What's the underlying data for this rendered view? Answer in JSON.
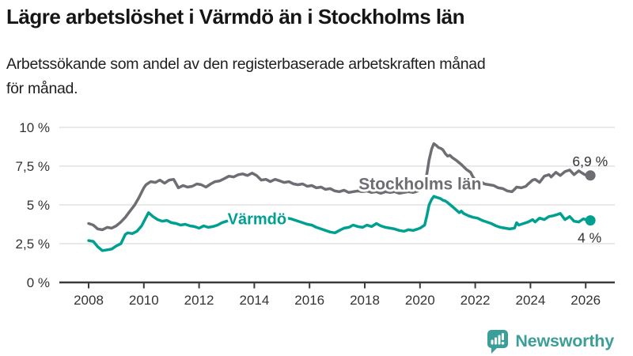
{
  "footer": {
    "brand": "Newsworthy",
    "brand_color": "#3b9e99",
    "logo_icon": "newsworthy-speech-bubble-bar-chart-icon"
  },
  "chart_data": {
    "type": "line",
    "title": "Lägre arbetslöshet i Värmdö än i Stockholms län",
    "subtitle": "Arbetssökande som andel av den registerbaserade arbetskraften månad för månad.",
    "subtitle_lines": [
      "Arbetssökande som andel av den registerbaserade arbetskraften månad",
      "för månad."
    ],
    "grid": true,
    "legend_position": "inline-labels",
    "colors": {
      "axis": "#3a3a3a",
      "grid": "#e2e2e2",
      "axis_text": "#333333"
    },
    "x_axis": {
      "range": [
        2007.4,
        2027.1
      ],
      "ticks": [
        2008,
        2010,
        2012,
        2014,
        2016,
        2018,
        2020,
        2022,
        2024,
        2026
      ]
    },
    "y_axis": {
      "range": [
        0,
        10
      ],
      "unit": "%",
      "ticks": [
        0,
        2.5,
        5,
        7.5,
        10
      ],
      "tick_labels": [
        "0 %",
        "2,5 %",
        "5 %",
        "7,5 %",
        "10 %"
      ]
    },
    "series": [
      {
        "name": "Stockholms län",
        "color": "#6d6d73",
        "end_label": "6,9 %",
        "end_value": 6.9,
        "label_anchor": {
          "x": 2020.0,
          "y": 6.35
        },
        "points": [
          [
            2008.0,
            3.8
          ],
          [
            2008.17,
            3.7
          ],
          [
            2008.33,
            3.45
          ],
          [
            2008.5,
            3.4
          ],
          [
            2008.67,
            3.55
          ],
          [
            2008.83,
            3.5
          ],
          [
            2009.0,
            3.65
          ],
          [
            2009.17,
            3.9
          ],
          [
            2009.33,
            4.2
          ],
          [
            2009.5,
            4.6
          ],
          [
            2009.67,
            5.0
          ],
          [
            2009.83,
            5.5
          ],
          [
            2010.0,
            6.1
          ],
          [
            2010.08,
            6.3
          ],
          [
            2010.25,
            6.5
          ],
          [
            2010.42,
            6.45
          ],
          [
            2010.58,
            6.6
          ],
          [
            2010.75,
            6.4
          ],
          [
            2010.92,
            6.6
          ],
          [
            2011.08,
            6.65
          ],
          [
            2011.25,
            6.1
          ],
          [
            2011.42,
            6.25
          ],
          [
            2011.58,
            6.15
          ],
          [
            2011.75,
            6.2
          ],
          [
            2011.92,
            6.35
          ],
          [
            2012.08,
            6.3
          ],
          [
            2012.25,
            6.15
          ],
          [
            2012.42,
            6.35
          ],
          [
            2012.58,
            6.5
          ],
          [
            2012.75,
            6.55
          ],
          [
            2012.92,
            6.7
          ],
          [
            2013.08,
            6.85
          ],
          [
            2013.25,
            6.8
          ],
          [
            2013.42,
            6.95
          ],
          [
            2013.58,
            7.0
          ],
          [
            2013.75,
            6.9
          ],
          [
            2013.92,
            7.05
          ],
          [
            2014.08,
            6.9
          ],
          [
            2014.25,
            6.6
          ],
          [
            2014.42,
            6.65
          ],
          [
            2014.58,
            6.5
          ],
          [
            2014.75,
            6.65
          ],
          [
            2014.92,
            6.55
          ],
          [
            2015.08,
            6.45
          ],
          [
            2015.25,
            6.5
          ],
          [
            2015.42,
            6.35
          ],
          [
            2015.58,
            6.3
          ],
          [
            2015.75,
            6.35
          ],
          [
            2015.92,
            6.2
          ],
          [
            2016.08,
            6.25
          ],
          [
            2016.25,
            6.1
          ],
          [
            2016.42,
            6.15
          ],
          [
            2016.58,
            6.0
          ],
          [
            2016.75,
            6.05
          ],
          [
            2016.92,
            5.9
          ],
          [
            2017.08,
            5.85
          ],
          [
            2017.25,
            5.95
          ],
          [
            2017.42,
            5.8
          ],
          [
            2017.58,
            5.85
          ],
          [
            2017.75,
            5.9
          ],
          [
            2017.92,
            5.85
          ],
          [
            2018.08,
            5.9
          ],
          [
            2018.25,
            5.8
          ],
          [
            2018.42,
            5.85
          ],
          [
            2018.58,
            5.75
          ],
          [
            2018.75,
            5.85
          ],
          [
            2018.92,
            5.8
          ],
          [
            2019.08,
            5.85
          ],
          [
            2019.25,
            5.75
          ],
          [
            2019.42,
            5.8
          ],
          [
            2019.58,
            5.85
          ],
          [
            2019.75,
            5.8
          ],
          [
            2019.92,
            5.9
          ],
          [
            2020.08,
            6.1
          ],
          [
            2020.25,
            7.0
          ],
          [
            2020.33,
            7.9
          ],
          [
            2020.42,
            8.6
          ],
          [
            2020.5,
            8.95
          ],
          [
            2020.58,
            8.85
          ],
          [
            2020.67,
            8.7
          ],
          [
            2020.75,
            8.65
          ],
          [
            2020.83,
            8.55
          ],
          [
            2020.92,
            8.3
          ],
          [
            2021.0,
            8.15
          ],
          [
            2021.08,
            8.2
          ],
          [
            2021.17,
            8.05
          ],
          [
            2021.33,
            7.85
          ],
          [
            2021.5,
            7.6
          ],
          [
            2021.67,
            7.3
          ],
          [
            2021.83,
            7.1
          ],
          [
            2021.92,
            6.8
          ],
          [
            2022.0,
            6.6
          ],
          [
            2022.08,
            6.5
          ],
          [
            2022.25,
            6.45
          ],
          [
            2022.33,
            6.35
          ],
          [
            2022.5,
            6.3
          ],
          [
            2022.67,
            6.25
          ],
          [
            2022.83,
            6.1
          ],
          [
            2023.0,
            6.05
          ],
          [
            2023.17,
            5.9
          ],
          [
            2023.33,
            5.85
          ],
          [
            2023.42,
            6.0
          ],
          [
            2023.5,
            6.15
          ],
          [
            2023.67,
            6.1
          ],
          [
            2023.83,
            6.2
          ],
          [
            2023.92,
            6.35
          ],
          [
            2024.08,
            6.6
          ],
          [
            2024.17,
            6.65
          ],
          [
            2024.33,
            6.45
          ],
          [
            2024.5,
            6.85
          ],
          [
            2024.67,
            6.95
          ],
          [
            2024.75,
            6.8
          ],
          [
            2024.92,
            7.1
          ],
          [
            2025.08,
            6.9
          ],
          [
            2025.25,
            7.15
          ],
          [
            2025.42,
            7.25
          ],
          [
            2025.58,
            6.95
          ],
          [
            2025.75,
            7.2
          ],
          [
            2025.92,
            7.0
          ],
          [
            2026.08,
            6.85
          ],
          [
            2026.17,
            6.9
          ]
        ]
      },
      {
        "name": "Värmdö",
        "color": "#00a091",
        "end_label": "4 %",
        "end_value": 4.0,
        "label_anchor": {
          "x": 2014.1,
          "y": 4.1
        },
        "points": [
          [
            2008.0,
            2.7
          ],
          [
            2008.17,
            2.65
          ],
          [
            2008.33,
            2.3
          ],
          [
            2008.5,
            2.05
          ],
          [
            2008.67,
            2.1
          ],
          [
            2008.83,
            2.15
          ],
          [
            2009.0,
            2.35
          ],
          [
            2009.17,
            2.5
          ],
          [
            2009.33,
            3.1
          ],
          [
            2009.42,
            3.2
          ],
          [
            2009.58,
            3.15
          ],
          [
            2009.75,
            3.3
          ],
          [
            2009.92,
            3.65
          ],
          [
            2010.08,
            4.2
          ],
          [
            2010.17,
            4.5
          ],
          [
            2010.33,
            4.25
          ],
          [
            2010.5,
            4.05
          ],
          [
            2010.67,
            3.95
          ],
          [
            2010.83,
            4.0
          ],
          [
            2011.0,
            3.85
          ],
          [
            2011.17,
            3.8
          ],
          [
            2011.33,
            3.7
          ],
          [
            2011.5,
            3.75
          ],
          [
            2011.67,
            3.65
          ],
          [
            2011.83,
            3.6
          ],
          [
            2012.0,
            3.5
          ],
          [
            2012.17,
            3.65
          ],
          [
            2012.33,
            3.55
          ],
          [
            2012.5,
            3.6
          ],
          [
            2012.67,
            3.7
          ],
          [
            2012.83,
            3.85
          ],
          [
            2013.0,
            3.95
          ],
          [
            2013.17,
            4.05
          ],
          [
            2013.33,
            4.0
          ],
          [
            2013.5,
            4.1
          ],
          [
            2013.67,
            4.15
          ],
          [
            2013.83,
            4.05
          ],
          [
            2014.0,
            4.1
          ],
          [
            2014.17,
            4.2
          ],
          [
            2014.33,
            4.1
          ],
          [
            2014.5,
            4.05
          ],
          [
            2014.67,
            3.95
          ],
          [
            2014.83,
            4.05
          ],
          [
            2015.0,
            4.1
          ],
          [
            2015.17,
            4.15
          ],
          [
            2015.33,
            4.1
          ],
          [
            2015.5,
            4.0
          ],
          [
            2015.75,
            3.85
          ],
          [
            2015.92,
            3.75
          ],
          [
            2016.08,
            3.7
          ],
          [
            2016.25,
            3.55
          ],
          [
            2016.42,
            3.45
          ],
          [
            2016.58,
            3.35
          ],
          [
            2016.75,
            3.25
          ],
          [
            2016.92,
            3.2
          ],
          [
            2017.08,
            3.35
          ],
          [
            2017.25,
            3.5
          ],
          [
            2017.42,
            3.55
          ],
          [
            2017.58,
            3.7
          ],
          [
            2017.75,
            3.6
          ],
          [
            2017.92,
            3.55
          ],
          [
            2018.08,
            3.7
          ],
          [
            2018.25,
            3.6
          ],
          [
            2018.42,
            3.8
          ],
          [
            2018.58,
            3.65
          ],
          [
            2018.75,
            3.55
          ],
          [
            2018.92,
            3.5
          ],
          [
            2019.08,
            3.45
          ],
          [
            2019.25,
            3.35
          ],
          [
            2019.42,
            3.3
          ],
          [
            2019.58,
            3.4
          ],
          [
            2019.75,
            3.35
          ],
          [
            2019.92,
            3.45
          ],
          [
            2020.0,
            3.5
          ],
          [
            2020.17,
            3.7
          ],
          [
            2020.25,
            4.3
          ],
          [
            2020.33,
            5.0
          ],
          [
            2020.42,
            5.35
          ],
          [
            2020.5,
            5.55
          ],
          [
            2020.58,
            5.5
          ],
          [
            2020.67,
            5.45
          ],
          [
            2020.75,
            5.4
          ],
          [
            2020.83,
            5.3
          ],
          [
            2020.92,
            5.25
          ],
          [
            2021.0,
            5.15
          ],
          [
            2021.17,
            4.9
          ],
          [
            2021.33,
            4.65
          ],
          [
            2021.42,
            4.5
          ],
          [
            2021.5,
            4.6
          ],
          [
            2021.58,
            4.45
          ],
          [
            2021.75,
            4.3
          ],
          [
            2021.92,
            4.2
          ],
          [
            2022.08,
            4.15
          ],
          [
            2022.25,
            4.0
          ],
          [
            2022.42,
            3.9
          ],
          [
            2022.58,
            3.8
          ],
          [
            2022.75,
            3.65
          ],
          [
            2022.92,
            3.55
          ],
          [
            2023.08,
            3.5
          ],
          [
            2023.25,
            3.45
          ],
          [
            2023.42,
            3.5
          ],
          [
            2023.5,
            3.85
          ],
          [
            2023.58,
            3.7
          ],
          [
            2023.75,
            3.8
          ],
          [
            2023.92,
            3.9
          ],
          [
            2024.08,
            4.05
          ],
          [
            2024.17,
            3.9
          ],
          [
            2024.33,
            4.15
          ],
          [
            2024.5,
            4.05
          ],
          [
            2024.67,
            4.25
          ],
          [
            2024.83,
            4.3
          ],
          [
            2025.0,
            4.4
          ],
          [
            2025.08,
            4.45
          ],
          [
            2025.25,
            4.05
          ],
          [
            2025.42,
            4.25
          ],
          [
            2025.58,
            3.95
          ],
          [
            2025.75,
            3.9
          ],
          [
            2025.92,
            4.1
          ],
          [
            2026.08,
            4.0
          ],
          [
            2026.17,
            4.0
          ]
        ]
      }
    ]
  }
}
